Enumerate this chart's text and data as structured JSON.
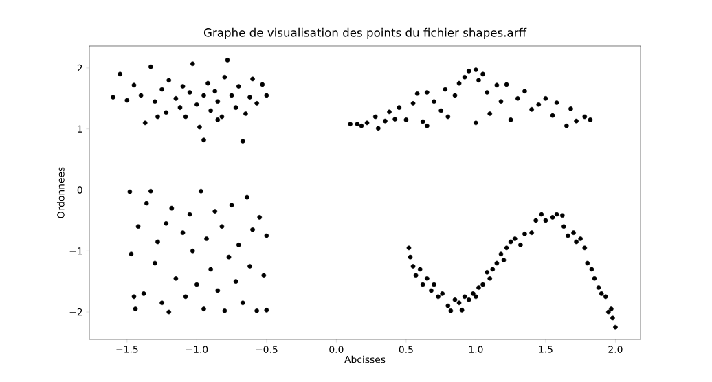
{
  "chart_data": {
    "type": "scatter",
    "title": "Graphe de visualisation des points du fichier shapes.arff",
    "xlabel": "Abcisses",
    "ylabel": "Ordonnees",
    "marker": "circle",
    "color": "#000000",
    "xlim": [
      -1.77,
      2.18
    ],
    "ylim": [
      -2.45,
      2.36
    ],
    "xticks": [
      {
        "value": -1.5,
        "label": "−1.5"
      },
      {
        "value": -1.0,
        "label": "−1.0"
      },
      {
        "value": -0.5,
        "label": "−0.5"
      },
      {
        "value": 0.0,
        "label": "0.0"
      },
      {
        "value": 0.5,
        "label": "0.5"
      },
      {
        "value": 1.0,
        "label": "1.0"
      },
      {
        "value": 1.5,
        "label": "1.5"
      },
      {
        "value": 2.0,
        "label": "2.0"
      }
    ],
    "yticks": [
      {
        "value": -2,
        "label": "−2"
      },
      {
        "value": -1,
        "label": "−1"
      },
      0,
      1,
      2
    ],
    "x": [
      -1.6,
      -1.55,
      -1.5,
      -1.45,
      -1.4,
      -1.37,
      -1.33,
      -1.3,
      -1.25,
      -1.22,
      -1.2,
      -1.15,
      -1.12,
      -1.1,
      -1.05,
      -1.03,
      -1.0,
      -0.98,
      -0.95,
      -0.95,
      -0.92,
      -0.9,
      -0.87,
      -0.85,
      -0.82,
      -0.8,
      -0.78,
      -0.75,
      -0.72,
      -0.7,
      -0.67,
      -0.65,
      -0.62,
      -0.6,
      -0.57,
      -0.53,
      -0.5,
      -1.28,
      -1.08,
      -0.85,
      0.1,
      0.15,
      0.18,
      0.22,
      0.28,
      0.3,
      0.35,
      0.38,
      0.42,
      0.45,
      0.5,
      0.55,
      0.58,
      0.62,
      0.65,
      0.7,
      0.75,
      0.78,
      0.8,
      0.85,
      0.88,
      0.92,
      0.95,
      1.0,
      1.02,
      1.05,
      1.08,
      1.1,
      1.15,
      1.18,
      1.22,
      1.25,
      1.3,
      1.35,
      1.4,
      1.45,
      1.5,
      1.55,
      1.58,
      1.65,
      1.68,
      1.72,
      1.78,
      1.82,
      0.65,
      1.0,
      -1.48,
      -1.47,
      -1.45,
      -1.44,
      -1.42,
      -1.38,
      -1.36,
      -1.33,
      -1.3,
      -1.28,
      -1.25,
      -1.22,
      -1.2,
      -1.18,
      -1.15,
      -1.1,
      -1.08,
      -1.05,
      -1.03,
      -1.0,
      -0.97,
      -0.95,
      -0.93,
      -0.9,
      -0.87,
      -0.85,
      -0.82,
      -0.8,
      -0.77,
      -0.75,
      -0.72,
      -0.7,
      -0.67,
      -0.64,
      -0.62,
      -0.6,
      -0.57,
      -0.55,
      -0.52,
      -0.5,
      -0.5,
      0.52,
      0.53,
      0.55,
      0.57,
      0.6,
      0.62,
      0.65,
      0.68,
      0.7,
      0.73,
      0.76,
      0.8,
      0.82,
      0.85,
      0.88,
      0.9,
      0.92,
      0.95,
      0.98,
      1.0,
      1.02,
      1.05,
      1.08,
      1.1,
      1.12,
      1.15,
      1.18,
      1.2,
      1.22,
      1.25,
      1.28,
      1.32,
      1.35,
      1.4,
      1.43,
      1.47,
      1.5,
      1.55,
      1.58,
      1.62,
      1.63,
      1.66,
      1.7,
      1.72,
      1.75,
      1.78,
      1.8,
      1.83,
      1.85,
      1.88,
      1.9,
      1.93,
      1.95,
      1.97,
      1.98,
      2.0
    ],
    "values": [
      1.52,
      1.9,
      1.47,
      1.72,
      1.55,
      1.1,
      2.02,
      1.45,
      1.65,
      1.27,
      1.8,
      1.5,
      1.35,
      1.7,
      1.6,
      2.07,
      1.4,
      1.03,
      0.82,
      1.55,
      1.75,
      1.3,
      1.62,
      1.45,
      1.2,
      1.85,
      2.13,
      1.55,
      1.35,
      1.7,
      0.8,
      1.25,
      1.52,
      1.82,
      1.42,
      1.73,
      1.55,
      1.2,
      1.2,
      1.15,
      1.08,
      1.08,
      1.05,
      1.1,
      1.2,
      1.01,
      1.13,
      1.28,
      1.16,
      1.35,
      1.15,
      1.42,
      1.58,
      1.12,
      1.6,
      1.45,
      1.3,
      1.65,
      1.2,
      1.55,
      1.75,
      1.85,
      1.95,
      1.97,
      1.8,
      1.9,
      1.6,
      1.25,
      1.72,
      1.45,
      1.73,
      1.15,
      1.5,
      1.62,
      1.32,
      1.4,
      1.5,
      1.22,
      1.43,
      1.05,
      1.33,
      1.13,
      1.2,
      1.15,
      1.05,
      1.1,
      -0.03,
      -1.05,
      -1.75,
      -1.95,
      -0.6,
      -1.7,
      -0.22,
      -0.02,
      -1.2,
      -0.85,
      -1.85,
      -0.55,
      -2.0,
      -0.3,
      -1.45,
      -0.7,
      -1.75,
      -0.4,
      -1.0,
      -1.55,
      -0.02,
      -1.95,
      -0.8,
      -1.3,
      -0.35,
      -1.65,
      -0.6,
      -1.98,
      -1.1,
      -0.25,
      -1.5,
      -0.9,
      -1.85,
      -0.12,
      -1.25,
      -0.65,
      -1.98,
      -0.45,
      -1.4,
      -1.97,
      -0.75,
      -0.95,
      -1.1,
      -1.25,
      -1.4,
      -1.3,
      -1.55,
      -1.45,
      -1.65,
      -1.55,
      -1.75,
      -1.7,
      -1.9,
      -1.98,
      -1.8,
      -1.85,
      -1.97,
      -1.75,
      -1.8,
      -1.7,
      -1.75,
      -1.6,
      -1.55,
      -1.35,
      -1.45,
      -1.3,
      -1.2,
      -1.05,
      -1.15,
      -0.95,
      -0.85,
      -0.8,
      -0.9,
      -0.72,
      -0.7,
      -0.5,
      -0.4,
      -0.5,
      -0.45,
      -0.4,
      -0.42,
      -0.6,
      -0.75,
      -0.7,
      -0.85,
      -0.8,
      -0.95,
      -1.2,
      -1.3,
      -1.45,
      -1.6,
      -1.7,
      -1.75,
      -2.0,
      -1.95,
      -2.1,
      -2.25
    ]
  }
}
